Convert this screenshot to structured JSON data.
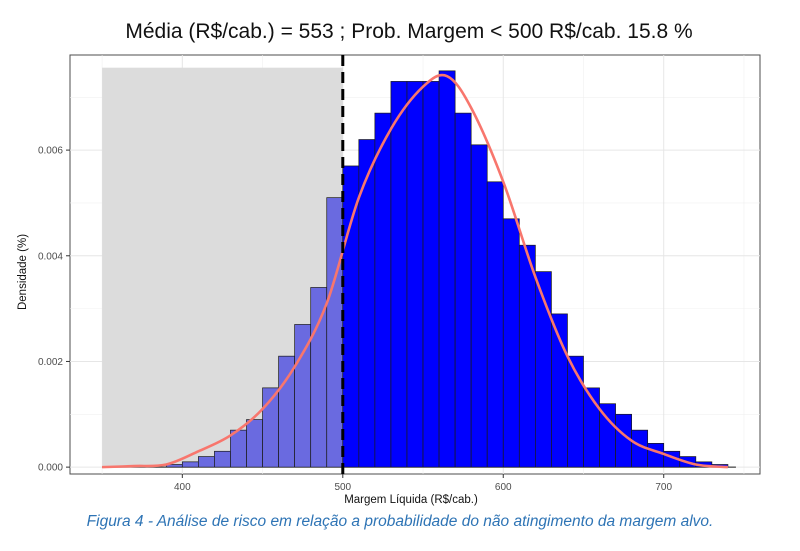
{
  "chart_data": {
    "type": "bar",
    "title": "Média (R$/cab.) = 553 ;  Prob. Margem < 500 R$/cab. 15.8 %",
    "xlabel": "Margem Líquida (R$/cab.)",
    "ylabel": "Densidade (%)",
    "xlim": [
      330,
      760
    ],
    "ylim": [
      -0.00013,
      0.0078
    ],
    "x_ticks": [
      400,
      500,
      600,
      700
    ],
    "x_tick_labels": [
      "400",
      "500",
      "600",
      "700"
    ],
    "y_ticks": [
      0.0,
      0.002,
      0.004,
      0.006
    ],
    "y_tick_labels": [
      "0.000",
      "0.002",
      "0.004",
      "0.006"
    ],
    "grid": true,
    "threshold": 500,
    "shaded_region": {
      "x": [
        350,
        500
      ],
      "y_top": 0.00756
    },
    "bin_width": 10,
    "bins": {
      "left_edges": [
        370,
        380,
        390,
        400,
        410,
        420,
        430,
        440,
        450,
        460,
        470,
        480,
        490,
        500,
        510,
        520,
        530,
        540,
        550,
        560,
        570,
        580,
        590,
        600,
        610,
        620,
        630,
        640,
        650,
        660,
        670,
        680,
        690,
        700,
        710,
        720,
        730,
        740
      ],
      "density": [
        0.0,
        0.0,
        5e-05,
        0.0001,
        0.0002,
        0.0003,
        0.0007,
        0.0009,
        0.0015,
        0.0021,
        0.0027,
        0.0034,
        0.0051,
        0.0057,
        0.0062,
        0.0067,
        0.0073,
        0.0073,
        0.0073,
        0.0075,
        0.0067,
        0.0061,
        0.0054,
        0.0047,
        0.0042,
        0.0037,
        0.0029,
        0.0021,
        0.0015,
        0.0012,
        0.001,
        0.0007,
        0.00045,
        0.0003,
        0.0002,
        0.0001,
        5e-05,
        0.0
      ]
    },
    "density_curve": {
      "x": [
        350,
        370,
        390,
        410,
        430,
        450,
        470,
        490,
        510,
        530,
        550,
        565,
        580,
        600,
        620,
        640,
        660,
        680,
        700,
        720,
        740
      ],
      "y": [
        0.0,
        2e-05,
        5e-05,
        0.0003,
        0.0006,
        0.0011,
        0.0019,
        0.0031,
        0.0051,
        0.0064,
        0.0072,
        0.0074,
        0.0068,
        0.0054,
        0.0036,
        0.0021,
        0.0011,
        0.0005,
        0.00025,
        5e-05,
        0.0
      ]
    },
    "colors": {
      "below_threshold": "#6a6ae0",
      "above_threshold": "#0000ff",
      "bar_edge": "#1a1a1a",
      "curve": "#f8766d",
      "shade": "#dcdcdc",
      "threshold_line": "#000000"
    }
  },
  "caption": "Figura 4 - Análise de risco em relação a probabilidade do não atingimento da margem alvo."
}
